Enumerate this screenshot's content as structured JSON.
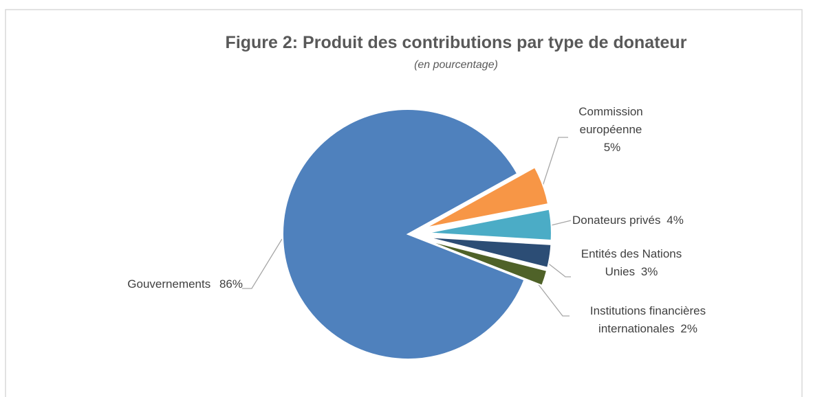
{
  "chart_data": {
    "type": "pie",
    "title": "Figure 2: Produit des contributions par type de donateur",
    "subtitle": "(en pourcentage)",
    "categories": [
      "Gouvernements",
      "Commission européenne",
      "Donateurs privés",
      "Entités des Nations Unies",
      "Institutions financières internationales"
    ],
    "values": [
      86,
      5,
      4,
      3,
      2
    ],
    "value_labels": [
      "86%",
      "5%",
      "4%",
      "3%",
      "2%"
    ],
    "colors": [
      "#4f81bd",
      "#f79646",
      "#4bacc6",
      "#2c4d75",
      "#4f6228"
    ]
  }
}
